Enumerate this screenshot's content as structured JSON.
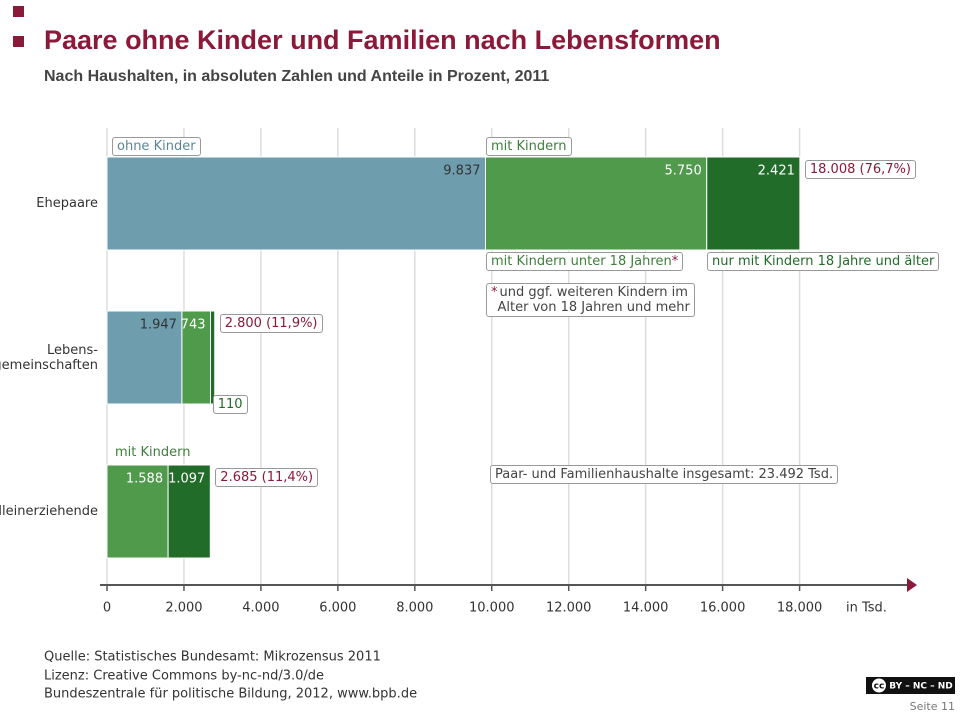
{
  "header": {
    "title": "Paare ohne Kinder und Familien nach Lebensformen",
    "subtitle": "Nach Haushalten, in absoluten Zahlen und Anteile in Prozent, 2011"
  },
  "chart_data": {
    "type": "stacked_barh",
    "categories": [
      "Ehepaare",
      "Lebens-\ngemeinschaften",
      "Alleinerziehende"
    ],
    "series": [
      {
        "name": "ohne Kinder",
        "color": "#6e9ead",
        "values": [
          9837,
          1947,
          null
        ],
        "value_labels": [
          "9.837",
          "1.947",
          null
        ]
      },
      {
        "name": "mit Kindern unter 18 Jahren",
        "color": "#4f9a4b",
        "values": [
          5750,
          743,
          1588
        ],
        "value_labels": [
          "5.750",
          "743",
          "1.588"
        ]
      },
      {
        "name": "nur mit Kindern 18 Jahre und älter",
        "color": "#216c29",
        "values": [
          2421,
          110,
          1097
        ],
        "value_labels": [
          "2.421",
          "110",
          "1.097"
        ]
      }
    ],
    "totals": [
      18008,
      2800,
      2685
    ],
    "total_labels": [
      "18.008 (76,7%)",
      "2.800 (11,9%)",
      "2.685 (11,4%)"
    ],
    "xlim": [
      0,
      21000
    ],
    "xticks": [
      0,
      {
        "value": 2000,
        "label": "2.000"
      },
      {
        "value": 4000,
        "label": "4.000"
      },
      {
        "value": 6000,
        "label": "6.000"
      },
      {
        "value": 8000,
        "label": "8.000"
      },
      {
        "value": 10000,
        "label": "10.000"
      },
      {
        "value": 12000,
        "label": "12.000"
      },
      {
        "value": 14000,
        "label": "14.000"
      },
      {
        "value": 16000,
        "label": "16.000"
      },
      {
        "value": 18000,
        "label": "18.000"
      }
    ],
    "x_unit": "in Tsd.",
    "grid": true,
    "annotations": {
      "group_label": "mit Kindern",
      "footnote_marker": "*",
      "footnote": "und ggf. weiteren Kindern im\nAlter von 18 Jahren und mehr",
      "sum_note": "Paar- und Familienhaushalte insgesamt: 23.492 Tsd."
    }
  },
  "footer": {
    "source": "Quelle: Statistisches Bundesamt: Mikrozensus 2011",
    "license": "Lizenz: Creative Commons by-nc-nd/3.0/de",
    "publisher": "Bundeszentrale für politische Bildung, 2012, www.bpb.de",
    "badge_cc": "cc",
    "badge": "BY – NC – ND",
    "page": "Seite 11"
  }
}
